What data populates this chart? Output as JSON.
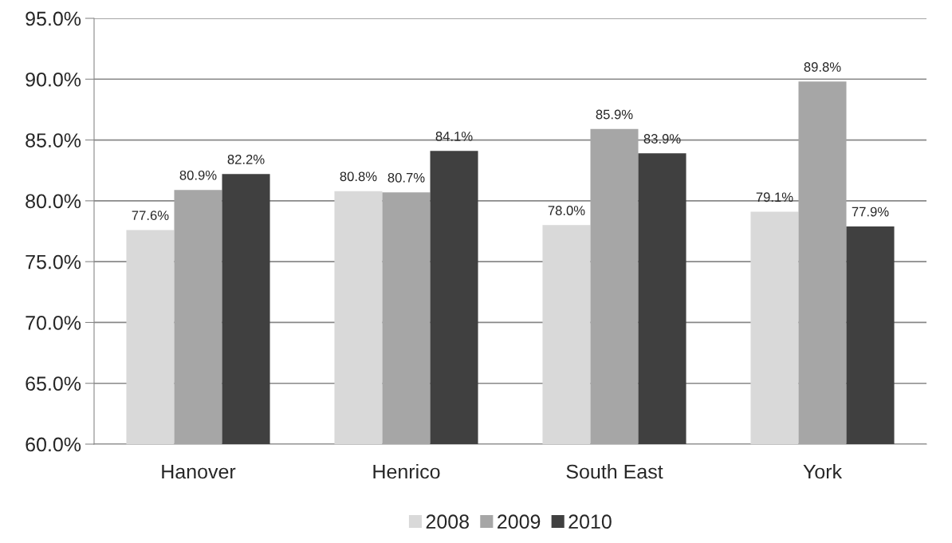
{
  "chart_data": {
    "type": "bar",
    "categories": [
      "Hanover",
      "Henrico",
      "South East",
      "York"
    ],
    "series": [
      {
        "name": "2008",
        "color": "#d9d9d9",
        "values": [
          77.6,
          80.8,
          78.0,
          79.1
        ],
        "value_labels": [
          "77.6%",
          "80.8%",
          "78.0%",
          "79.1%"
        ]
      },
      {
        "name": "2009",
        "color": "#a6a6a6",
        "values": [
          80.9,
          80.7,
          85.9,
          89.8
        ],
        "value_labels": [
          "80.9%",
          "80.7%",
          "85.9%",
          "89.8%"
        ]
      },
      {
        "name": "2010",
        "color": "#404040",
        "values": [
          82.2,
          84.1,
          83.9,
          77.9
        ],
        "value_labels": [
          "82.2%",
          "84.1%",
          "83.9%",
          "77.9%"
        ]
      }
    ],
    "ylim": [
      60,
      95
    ],
    "yticks": [
      {
        "value": 60,
        "label": "60.0%"
      },
      {
        "value": 65,
        "label": "65.0%"
      },
      {
        "value": 70,
        "label": "70.0%"
      },
      {
        "value": 75,
        "label": "75.0%"
      },
      {
        "value": 80,
        "label": "80.0%"
      },
      {
        "value": 85,
        "label": "85.0%"
      },
      {
        "value": 90,
        "label": "90.0%"
      },
      {
        "value": 95,
        "label": "95.0%"
      }
    ],
    "grid": "y",
    "legend": "bottom"
  }
}
